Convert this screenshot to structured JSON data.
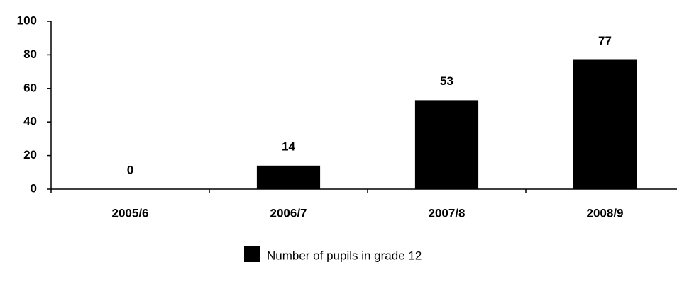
{
  "chart_data": {
    "type": "bar",
    "categories": [
      "2005/6",
      "2006/7",
      "2007/8",
      "2008/9"
    ],
    "series": [
      {
        "name": "Number of pupils in grade 12",
        "color": "#000000",
        "values": [
          0,
          14,
          53,
          77
        ]
      }
    ],
    "ylim": [
      0,
      100
    ],
    "yticks": [
      0,
      20,
      40,
      60,
      80,
      100
    ],
    "grid": false,
    "data_labels": true,
    "legend": "bottom"
  }
}
